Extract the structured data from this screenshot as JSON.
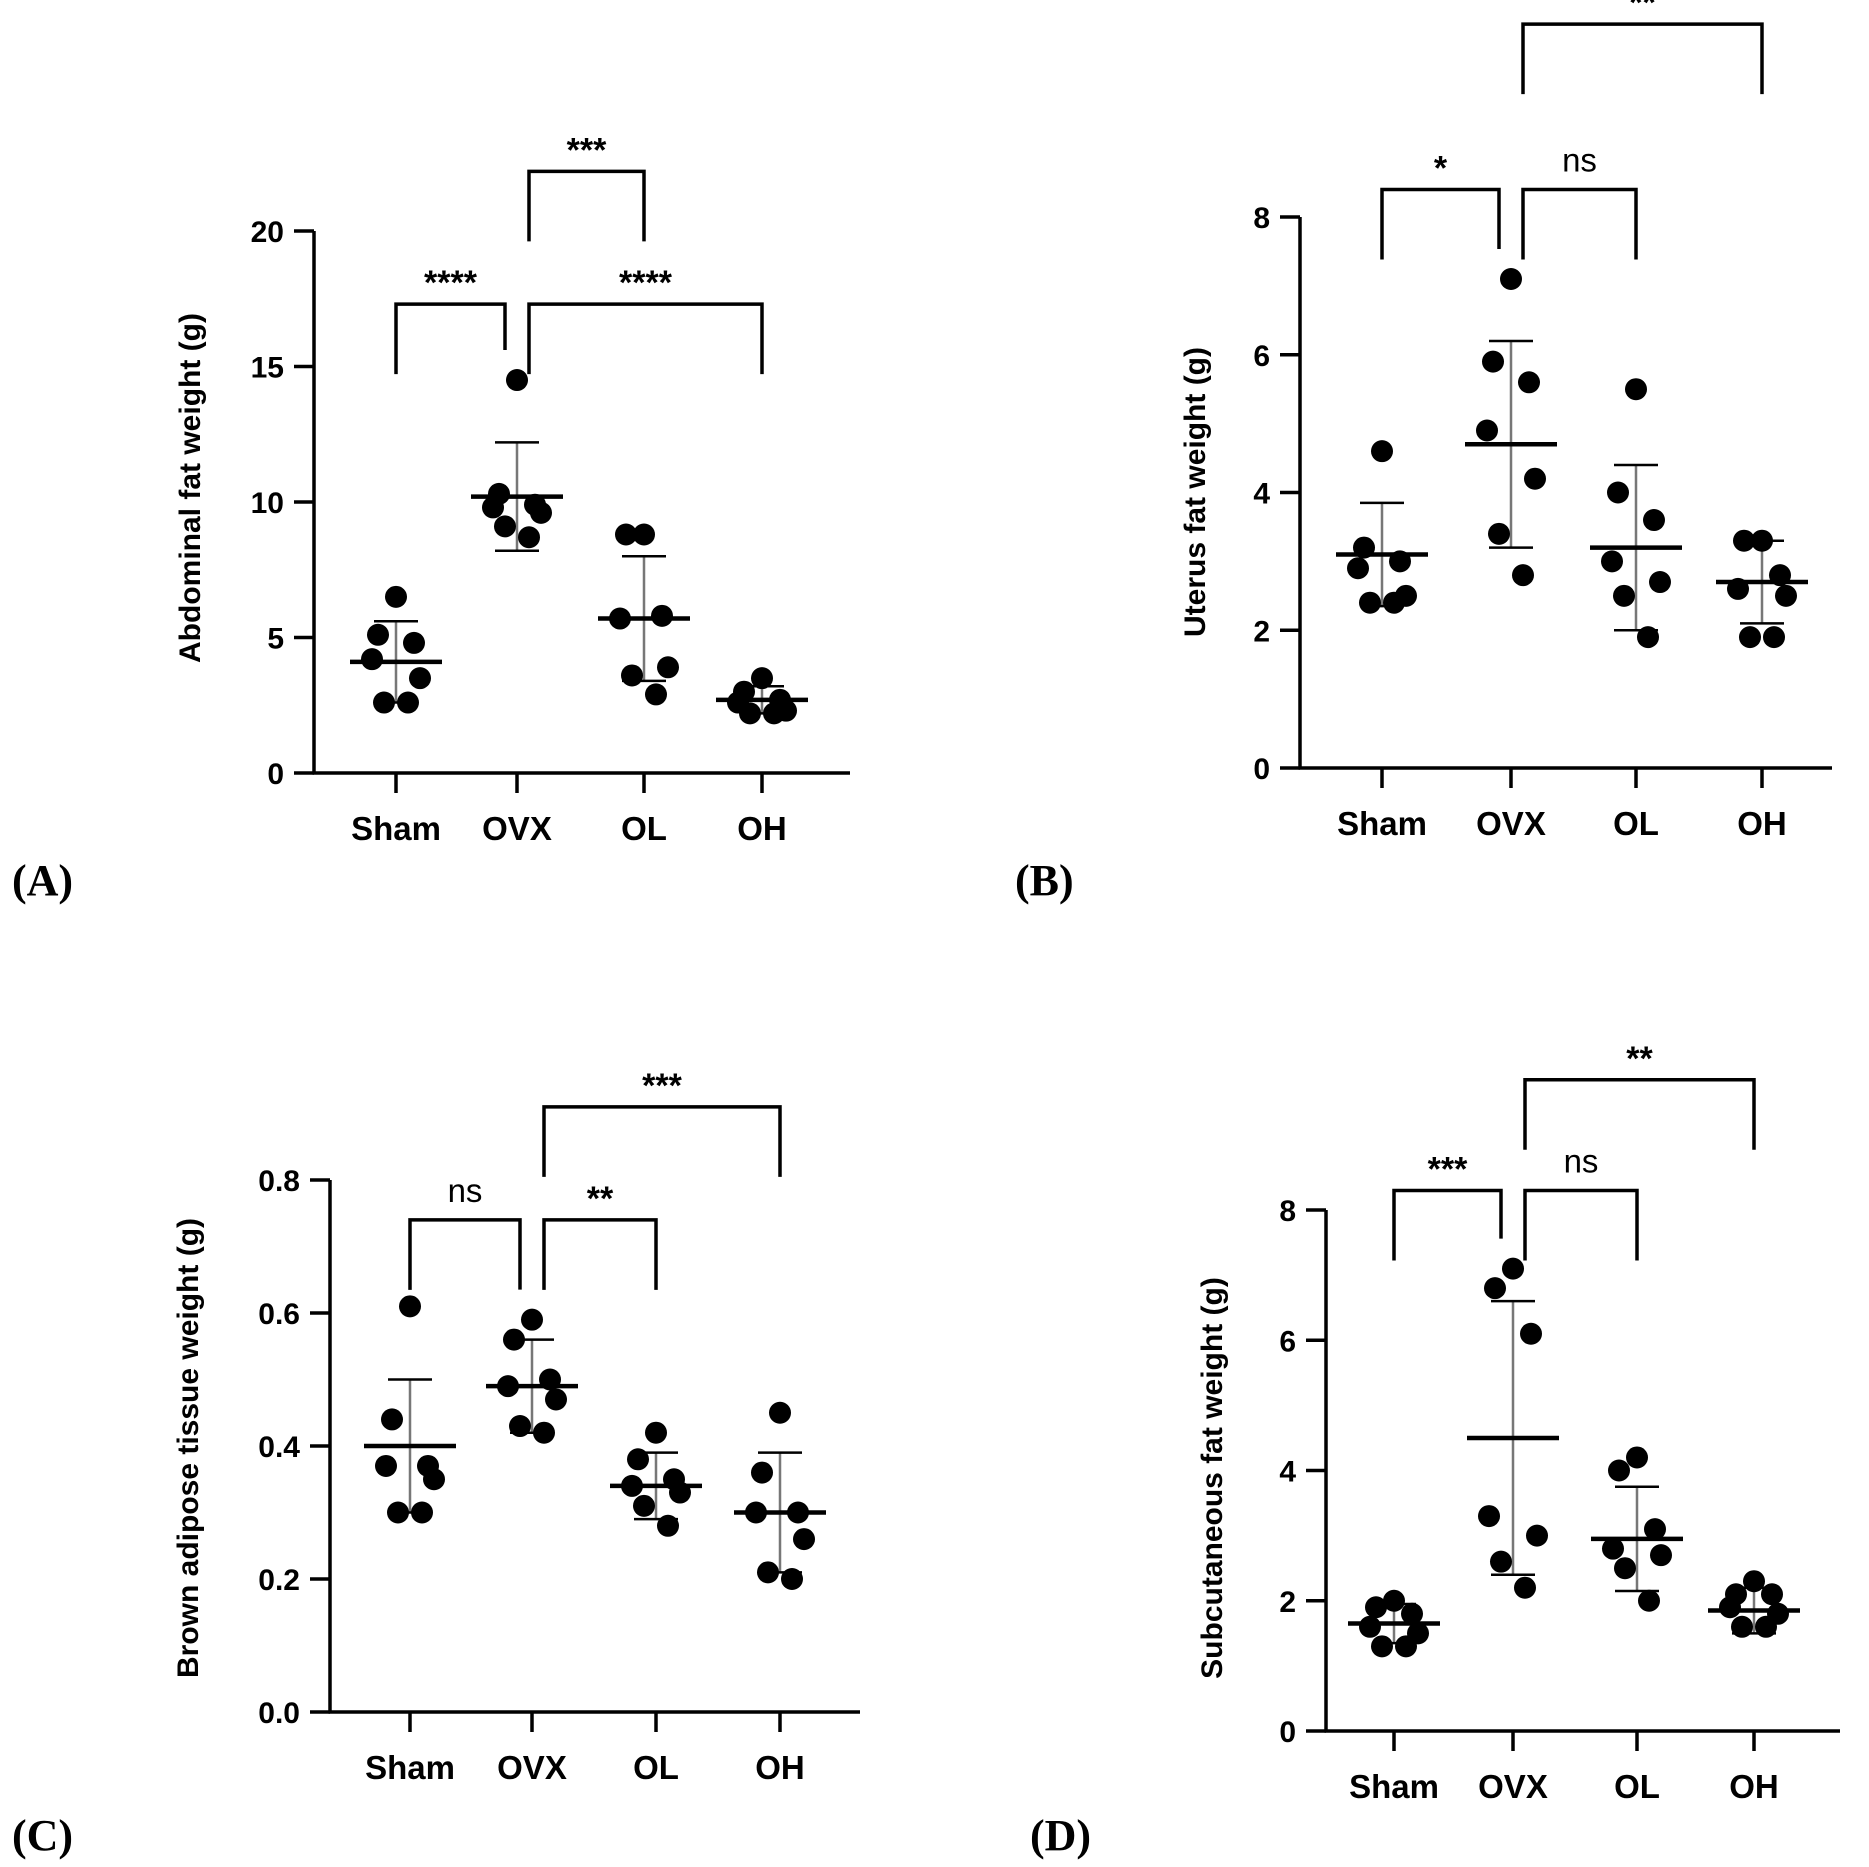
{
  "figure": {
    "colors": {
      "ink": "#000000",
      "error_bar": "#777777",
      "background": "#ffffff"
    }
  },
  "chart_data": [
    {
      "panel": "(A)",
      "type": "scatter",
      "ylabel": "Abdominal fat weight (g)",
      "xlabel": "",
      "categories": [
        "Sham",
        "OVX",
        "OL",
        "OH"
      ],
      "ylim": [
        0,
        20
      ],
      "yticks": [
        0,
        5,
        10,
        15,
        20
      ],
      "tick_labels": [
        "0",
        "5",
        "10",
        "15",
        "20"
      ],
      "points": [
        [
          6.5,
          5.1,
          4.8,
          4.2,
          3.5,
          2.6,
          2.6
        ],
        [
          14.5,
          10.3,
          9.9,
          9.8,
          9.6,
          9.1,
          8.7
        ],
        [
          8.8,
          8.8,
          5.8,
          5.7,
          3.9,
          3.6,
          2.9
        ],
        [
          3.5,
          3.0,
          2.7,
          2.6,
          2.3,
          2.2,
          2.2
        ]
      ],
      "mean": [
        4.1,
        10.2,
        5.7,
        2.7
      ],
      "sd": [
        1.5,
        2.0,
        2.3,
        0.5
      ],
      "comparisons": [
        {
          "from": 0,
          "to": 1,
          "label": "****",
          "y": 17.3
        },
        {
          "from": 1,
          "to": 3,
          "label": "****",
          "y": 17.3
        },
        {
          "from": 1,
          "to": 2,
          "label": "***",
          "y": 22.2
        }
      ]
    },
    {
      "panel": "(B)",
      "type": "scatter",
      "ylabel": "Uterus fat weight (g)",
      "xlabel": "",
      "categories": [
        "Sham",
        "OVX",
        "OL",
        "OH"
      ],
      "ylim": [
        0,
        8
      ],
      "yticks": [
        0,
        2,
        4,
        6,
        8
      ],
      "tick_labels": [
        "0",
        "2",
        "4",
        "6",
        "8"
      ],
      "points": [
        [
          4.6,
          3.2,
          3.0,
          2.9,
          2.5,
          2.4,
          2.4
        ],
        [
          7.1,
          5.9,
          5.6,
          4.9,
          4.2,
          3.4,
          2.8
        ],
        [
          5.5,
          4.0,
          3.6,
          3.0,
          2.7,
          2.5,
          1.9
        ],
        [
          3.3,
          3.3,
          2.8,
          2.6,
          2.5,
          1.9,
          1.9
        ]
      ],
      "mean": [
        3.1,
        4.7,
        3.2,
        2.7
      ],
      "sd": [
        0.75,
        1.5,
        1.2,
        0.6
      ],
      "comparisons": [
        {
          "from": 0,
          "to": 1,
          "label": "*",
          "y": 8.4
        },
        {
          "from": 1,
          "to": 2,
          "label": "ns",
          "y": 8.4
        },
        {
          "from": 1,
          "to": 3,
          "label": "**",
          "y": 10.8
        }
      ]
    },
    {
      "panel": "(C)",
      "type": "scatter",
      "ylabel": "Brown adipose tissue weight (g)",
      "xlabel": "",
      "categories": [
        "Sham",
        "OVX",
        "OL",
        "OH"
      ],
      "ylim": [
        0,
        0.8
      ],
      "yticks": [
        0,
        0.2,
        0.4,
        0.6,
        0.8
      ],
      "tick_labels": [
        "0.0",
        "0.2",
        "0.4",
        "0.6",
        "0.8"
      ],
      "points": [
        [
          0.61,
          0.44,
          0.37,
          0.37,
          0.35,
          0.3,
          0.3
        ],
        [
          0.59,
          0.56,
          0.5,
          0.49,
          0.47,
          0.43,
          0.42
        ],
        [
          0.42,
          0.38,
          0.35,
          0.34,
          0.33,
          0.31,
          0.28
        ],
        [
          0.45,
          0.36,
          0.3,
          0.3,
          0.26,
          0.21,
          0.2
        ]
      ],
      "mean": [
        0.4,
        0.49,
        0.34,
        0.3
      ],
      "sd": [
        0.1,
        0.07,
        0.05,
        0.09
      ],
      "comparisons": [
        {
          "from": 0,
          "to": 1,
          "label": "ns",
          "y": 0.74
        },
        {
          "from": 1,
          "to": 2,
          "label": "**",
          "y": 0.74
        },
        {
          "from": 1,
          "to": 3,
          "label": "***",
          "y": 0.91
        }
      ]
    },
    {
      "panel": "(D)",
      "type": "scatter",
      "ylabel": "Subcutaneous fat weight (g)",
      "xlabel": "",
      "categories": [
        "Sham",
        "OVX",
        "OL",
        "OH"
      ],
      "ylim": [
        0,
        8
      ],
      "yticks": [
        0,
        2,
        4,
        6,
        8
      ],
      "tick_labels": [
        "0",
        "2",
        "4",
        "6",
        "8"
      ],
      "points": [
        [
          2.0,
          1.9,
          1.8,
          1.6,
          1.5,
          1.3,
          1.3
        ],
        [
          7.1,
          6.8,
          6.1,
          3.3,
          3.0,
          2.6,
          2.2
        ],
        [
          4.2,
          4.0,
          3.1,
          2.8,
          2.7,
          2.5,
          2.0
        ],
        [
          2.3,
          2.1,
          2.1,
          1.9,
          1.8,
          1.6,
          1.6
        ]
      ],
      "mean": [
        1.65,
        4.5,
        2.95,
        1.85
      ],
      "sd": [
        0.3,
        2.1,
        0.8,
        0.35
      ],
      "comparisons": [
        {
          "from": 0,
          "to": 1,
          "label": "***",
          "y": 8.3
        },
        {
          "from": 1,
          "to": 2,
          "label": "ns",
          "y": 8.3
        },
        {
          "from": 1,
          "to": 3,
          "label": "**",
          "y": 10.0
        }
      ]
    }
  ]
}
